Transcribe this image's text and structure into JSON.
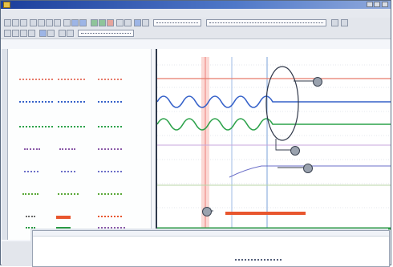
{
  "window": {
    "title": "",
    "controls": [
      "",
      "",
      ""
    ]
  },
  "menu": {
    "items": [
      "",
      "",
      "",
      "",
      "",
      "",
      "",
      ""
    ]
  },
  "signals": [
    {
      "color": "#e77b6b",
      "group": ""
    },
    {
      "color": "#3561c9",
      "group": ""
    },
    {
      "color": "#2ca24a",
      "group": ""
    },
    {
      "color": "#8a5aa8",
      "group": ""
    },
    {
      "color": "#6b6fc8",
      "group": ""
    },
    {
      "color": "#5aa838",
      "group": ""
    },
    {
      "color": "#e8562e",
      "group": ""
    }
  ],
  "plot": {
    "cursors": [
      {
        "name": "cursor-red",
        "color": "#ef8f8a"
      },
      {
        "name": "cursor-blue",
        "color": "#7aa0d8"
      },
      {
        "name": "cursor-blue-2",
        "color": "#7aa0d8"
      }
    ],
    "callouts": [
      {
        "name": "callout-a",
        "label": ""
      },
      {
        "name": "callout-b",
        "label": ""
      },
      {
        "name": "callout-c",
        "label": ""
      },
      {
        "name": "callout-d",
        "label": ""
      }
    ]
  },
  "bottom_panel": {
    "caption": ""
  }
}
